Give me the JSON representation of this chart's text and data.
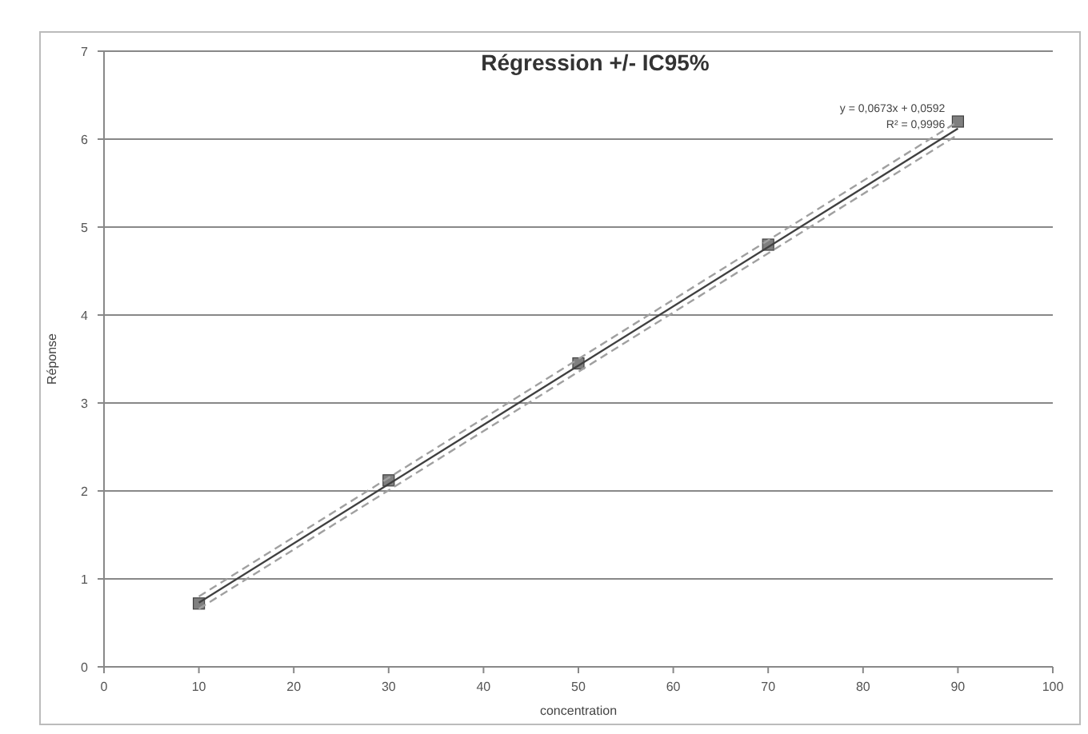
{
  "chart_data": {
    "type": "scatter",
    "title": "Régression +/- IC95%",
    "xlabel": "concentration",
    "ylabel": "Réponse",
    "xlim": [
      0,
      100
    ],
    "ylim": [
      0,
      7
    ],
    "xticks": [
      0,
      10,
      20,
      30,
      40,
      50,
      60,
      70,
      80,
      90,
      100
    ],
    "yticks": [
      0,
      1,
      2,
      3,
      4,
      5,
      6,
      7
    ],
    "grid": "y",
    "series": [
      {
        "marker": "square",
        "color": "#7f7f7f",
        "x": [
          10,
          30,
          50,
          70,
          90
        ],
        "values": [
          0.72,
          2.12,
          3.45,
          4.8,
          6.2
        ]
      },
      {
        "type": "line",
        "color": "#404040",
        "line_style": "solid",
        "marker": "none",
        "x": [
          10,
          90
        ],
        "values": [
          0.73,
          6.12
        ]
      },
      {
        "type": "line",
        "color": "#a0a0a0",
        "line_style": "dashed",
        "marker": "none",
        "x": [
          10,
          90
        ],
        "values": [
          0.8,
          6.2
        ]
      },
      {
        "type": "line",
        "color": "#a0a0a0",
        "line_style": "dashed",
        "marker": "none",
        "x": [
          10,
          90
        ],
        "values": [
          0.66,
          6.05
        ]
      }
    ],
    "annotations": [
      {
        "text": "y = 0,0673x + 0,0592",
        "x": 90,
        "y": 6.2
      },
      {
        "text": "R² = 0,9996",
        "x": 90,
        "y": 6.2
      }
    ]
  }
}
